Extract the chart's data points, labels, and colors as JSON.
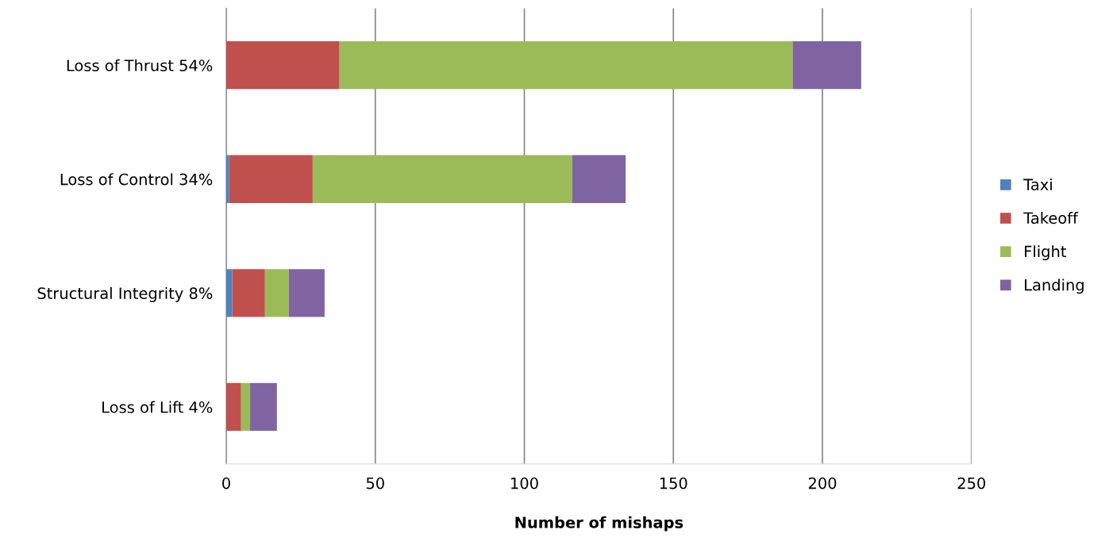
{
  "chart_data": {
    "type": "bar",
    "orientation": "horizontal",
    "stacked": true,
    "categories": [
      "Loss of Thrust 54%",
      "Loss of Control 34%",
      "Structural Integrity 8%",
      "Loss of Lift 4%"
    ],
    "series": [
      {
        "name": "Taxi",
        "color": "#4f81bd",
        "values": [
          0,
          1,
          2,
          0
        ]
      },
      {
        "name": "Takeoff",
        "color": "#c0504d",
        "values": [
          38,
          28,
          11,
          5
        ]
      },
      {
        "name": "Flight",
        "color": "#9bbb59",
        "values": [
          152,
          87,
          8,
          3
        ]
      },
      {
        "name": "Landing",
        "color": "#8064a2",
        "values": [
          23,
          18,
          12,
          9
        ]
      }
    ],
    "xlabel": "Number of mishaps",
    "xlim": [
      0,
      250
    ],
    "xticks": [
      0,
      50,
      100,
      150,
      200,
      250
    ],
    "grid": "x",
    "legend": "right"
  }
}
